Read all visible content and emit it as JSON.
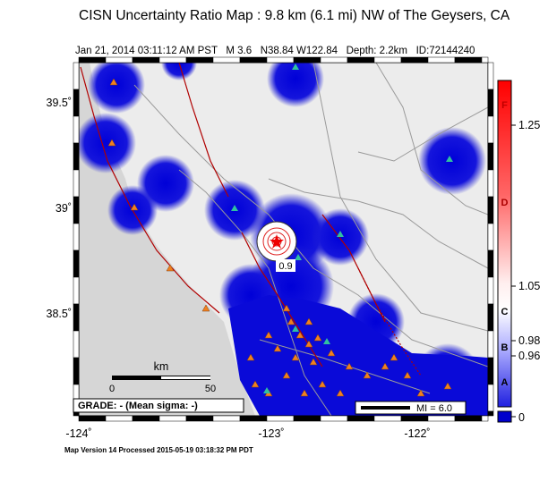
{
  "header": {
    "title": "CISN Uncertainty Ratio Map : 9.8 km (6.1 mi) NW of The Geysers, CA",
    "subtitle": "Jan 21, 2014 03:11:12 AM PST   M 3.6   N38.84 W122.84   Depth: 2.2km   ID:72144240"
  },
  "axes": {
    "latitude_labels": [
      "39.5˚",
      "39˚",
      "38.5˚"
    ],
    "longitude_labels": [
      "-124˚",
      "-123˚",
      "-122˚"
    ]
  },
  "map": {
    "contour_labels": [
      "0.9"
    ]
  },
  "scale_bar": {
    "unit": "km",
    "labels": [
      "0",
      "50"
    ]
  },
  "grade_box": "GRADE: - (Mean sigma: -)",
  "intensity_legend": "MI = 6.0",
  "colorbar": {
    "grade_labels": [
      "F",
      "D",
      "C",
      "B",
      "A"
    ],
    "value_labels": [
      "1.25",
      "1.05",
      "0.98",
      "0.96",
      "0"
    ]
  },
  "footer": "Map Version 14 Processed 2015-05-19 03:18:32 PM PDT"
}
